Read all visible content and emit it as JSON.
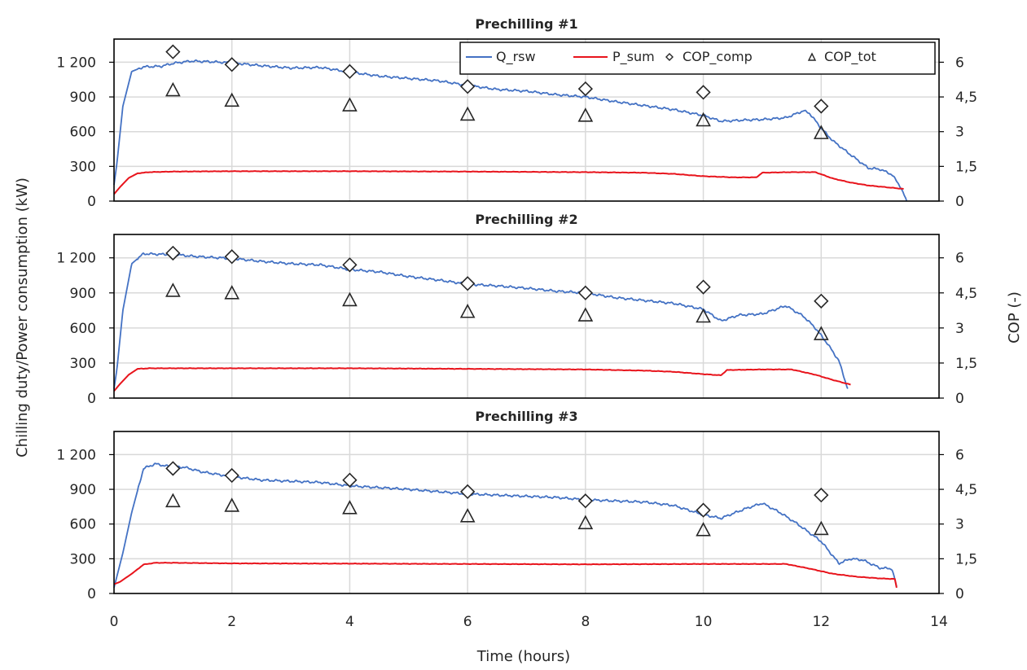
{
  "chart_data": {
    "type": "line",
    "xlabel": "Time (hours)",
    "ylabel_left": "Chilling duty/Power consumption (kW)",
    "ylabel_right": "COP (-)",
    "xlim": [
      0,
      14
    ],
    "x_ticks": [
      "0",
      "2",
      "4",
      "6",
      "8",
      "10",
      "12",
      "14"
    ],
    "ylim_left": [
      0,
      1400
    ],
    "y_ticks_left": [
      "0",
      "300",
      "600",
      "900",
      "1 200"
    ],
    "ylim_right": [
      0,
      7
    ],
    "y_ticks_right": [
      "0",
      "1,5",
      "3",
      "4,5",
      "6"
    ],
    "grid": true,
    "legend": {
      "placement": "top-right of first panel",
      "entries": [
        {
          "name": "Q_rsw",
          "kind": "line",
          "color": "#4472c4"
        },
        {
          "name": "P_sum",
          "kind": "line",
          "color": "#e8141c"
        },
        {
          "name": "COP_comp",
          "kind": "diamond",
          "color": "#262626"
        },
        {
          "name": "COP_tot",
          "kind": "triangle",
          "color": "#262626"
        }
      ]
    },
    "colors": {
      "Q_rsw": "#4472c4",
      "P_sum": "#e8141c",
      "markers": "#262626"
    },
    "panels": [
      {
        "title": "Prechilling #1",
        "series": [
          {
            "name": "Q_rsw",
            "axis": "left",
            "x": [
              0,
              0.05,
              0.15,
              0.3,
              0.5,
              0.8,
              1.0,
              1.3,
              1.6,
              2.0,
              2.5,
              3.0,
              3.5,
              4.0,
              4.5,
              5.0,
              5.5,
              6.0,
              6.5,
              7.0,
              7.5,
              8.0,
              8.5,
              9.0,
              9.5,
              10.0,
              10.3,
              10.7,
              11.0,
              11.4,
              11.7,
              11.8,
              12.0,
              12.2,
              12.5,
              12.8,
              13.0,
              13.2,
              13.35,
              13.45
            ],
            "values": [
              140,
              330,
              820,
              1120,
              1160,
              1165,
              1190,
              1210,
              1205,
              1195,
              1170,
              1150,
              1155,
              1115,
              1080,
              1060,
              1040,
              1000,
              965,
              950,
              920,
              900,
              860,
              825,
              790,
              740,
              690,
              700,
              705,
              720,
              780,
              760,
              630,
              520,
              400,
              285,
              275,
              230,
              120,
              0
            ]
          },
          {
            "name": "P_sum",
            "axis": "left",
            "x": [
              0,
              0.1,
              0.25,
              0.4,
              0.6,
              1.0,
              2.0,
              4.0,
              6.0,
              8.0,
              9.0,
              9.5,
              10.0,
              10.5,
              10.9,
              11.0,
              11.5,
              11.9,
              12.2,
              12.5,
              12.8,
              13.1,
              13.4
            ],
            "values": [
              60,
              120,
              200,
              240,
              250,
              255,
              258,
              258,
              255,
              250,
              245,
              235,
              215,
              205,
              205,
              245,
              250,
              250,
              195,
              160,
              135,
              120,
              105
            ]
          },
          {
            "name": "COP_comp",
            "axis": "right",
            "x": [
              1,
              2,
              4,
              6,
              8,
              10,
              12
            ],
            "values": [
              6.45,
              5.9,
              5.6,
              4.95,
              4.85,
              4.7,
              4.1
            ]
          },
          {
            "name": "COP_tot",
            "axis": "right",
            "x": [
              1,
              2,
              4,
              6,
              8,
              10,
              12
            ],
            "values": [
              4.8,
              4.35,
              4.15,
              3.75,
              3.7,
              3.5,
              2.95
            ]
          }
        ]
      },
      {
        "title": "Prechilling #2",
        "series": [
          {
            "name": "Q_rsw",
            "axis": "left",
            "x": [
              0,
              0.05,
              0.15,
              0.3,
              0.5,
              0.8,
              1.0,
              1.3,
              1.6,
              2.0,
              2.5,
              3.0,
              3.5,
              4.0,
              4.5,
              5.0,
              5.5,
              6.0,
              6.5,
              7.0,
              7.5,
              8.0,
              8.5,
              9.0,
              9.5,
              10.0,
              10.3,
              10.6,
              11.0,
              11.4,
              11.7,
              11.9,
              12.1,
              12.3,
              12.45
            ],
            "values": [
              80,
              250,
              750,
              1150,
              1235,
              1230,
              1230,
              1215,
              1205,
              1195,
              1170,
              1150,
              1140,
              1100,
              1080,
              1040,
              1010,
              975,
              960,
              940,
              915,
              900,
              860,
              835,
              810,
              760,
              660,
              710,
              720,
              790,
              700,
              600,
              470,
              320,
              80
            ]
          },
          {
            "name": "P_sum",
            "axis": "left",
            "x": [
              0,
              0.1,
              0.25,
              0.4,
              0.6,
              1.0,
              2.0,
              4.0,
              6.0,
              8.0,
              9.0,
              9.5,
              10.0,
              10.3,
              10.4,
              11.0,
              11.5,
              11.9,
              12.2,
              12.5
            ],
            "values": [
              60,
              120,
              200,
              250,
              255,
              255,
              255,
              255,
              250,
              245,
              235,
              225,
              205,
              195,
              240,
              245,
              245,
              200,
              155,
              115
            ]
          },
          {
            "name": "COP_comp",
            "axis": "right",
            "x": [
              1,
              2,
              4,
              6,
              8,
              10,
              12
            ],
            "values": [
              6.2,
              6.05,
              5.7,
              4.9,
              4.5,
              4.75,
              4.15
            ]
          },
          {
            "name": "COP_tot",
            "axis": "right",
            "x": [
              1,
              2,
              4,
              6,
              8,
              10,
              12
            ],
            "values": [
              4.6,
              4.5,
              4.2,
              3.7,
              3.55,
              3.5,
              2.75
            ]
          }
        ]
      },
      {
        "title": "Prechilling #3",
        "series": [
          {
            "name": "Q_rsw",
            "axis": "left",
            "x": [
              0,
              0.05,
              0.15,
              0.3,
              0.5,
              0.7,
              0.9,
              1.2,
              1.5,
              2.0,
              2.5,
              3.0,
              3.5,
              4.0,
              4.5,
              5.0,
              5.5,
              6.0,
              6.5,
              7.0,
              7.5,
              8.0,
              8.5,
              9.0,
              9.5,
              10.0,
              10.3,
              10.7,
              11.0,
              11.3,
              11.6,
              12.0,
              12.3,
              12.5,
              12.7,
              13.0,
              13.2,
              13.28
            ],
            "values": [
              50,
              150,
              350,
              700,
              1080,
              1120,
              1100,
              1090,
              1050,
              1010,
              980,
              970,
              960,
              930,
              915,
              900,
              880,
              860,
              850,
              840,
              830,
              810,
              800,
              790,
              760,
              680,
              650,
              730,
              780,
              700,
              600,
              450,
              260,
              300,
              290,
              220,
              215,
              60
            ]
          },
          {
            "name": "P_sum",
            "axis": "left",
            "x": [
              0,
              0.1,
              0.3,
              0.5,
              0.7,
              1.0,
              2.0,
              4.0,
              6.0,
              8.0,
              10.0,
              11.0,
              11.4,
              11.8,
              12.2,
              12.6,
              13.0,
              13.25,
              13.28
            ],
            "values": [
              80,
              100,
              170,
              250,
              265,
              265,
              260,
              258,
              255,
              252,
              255,
              255,
              255,
              215,
              170,
              145,
              130,
              125,
              50
            ]
          },
          {
            "name": "COP_comp",
            "axis": "right",
            "x": [
              1,
              2,
              4,
              6,
              8,
              10,
              12
            ],
            "values": [
              5.4,
              5.1,
              4.9,
              4.4,
              4.0,
              3.6,
              4.25
            ]
          },
          {
            "name": "COP_tot",
            "axis": "right",
            "x": [
              1,
              2,
              4,
              6,
              8,
              10,
              12
            ],
            "values": [
              4.0,
              3.8,
              3.7,
              3.35,
              3.05,
              2.75,
              2.8
            ]
          }
        ]
      }
    ]
  }
}
